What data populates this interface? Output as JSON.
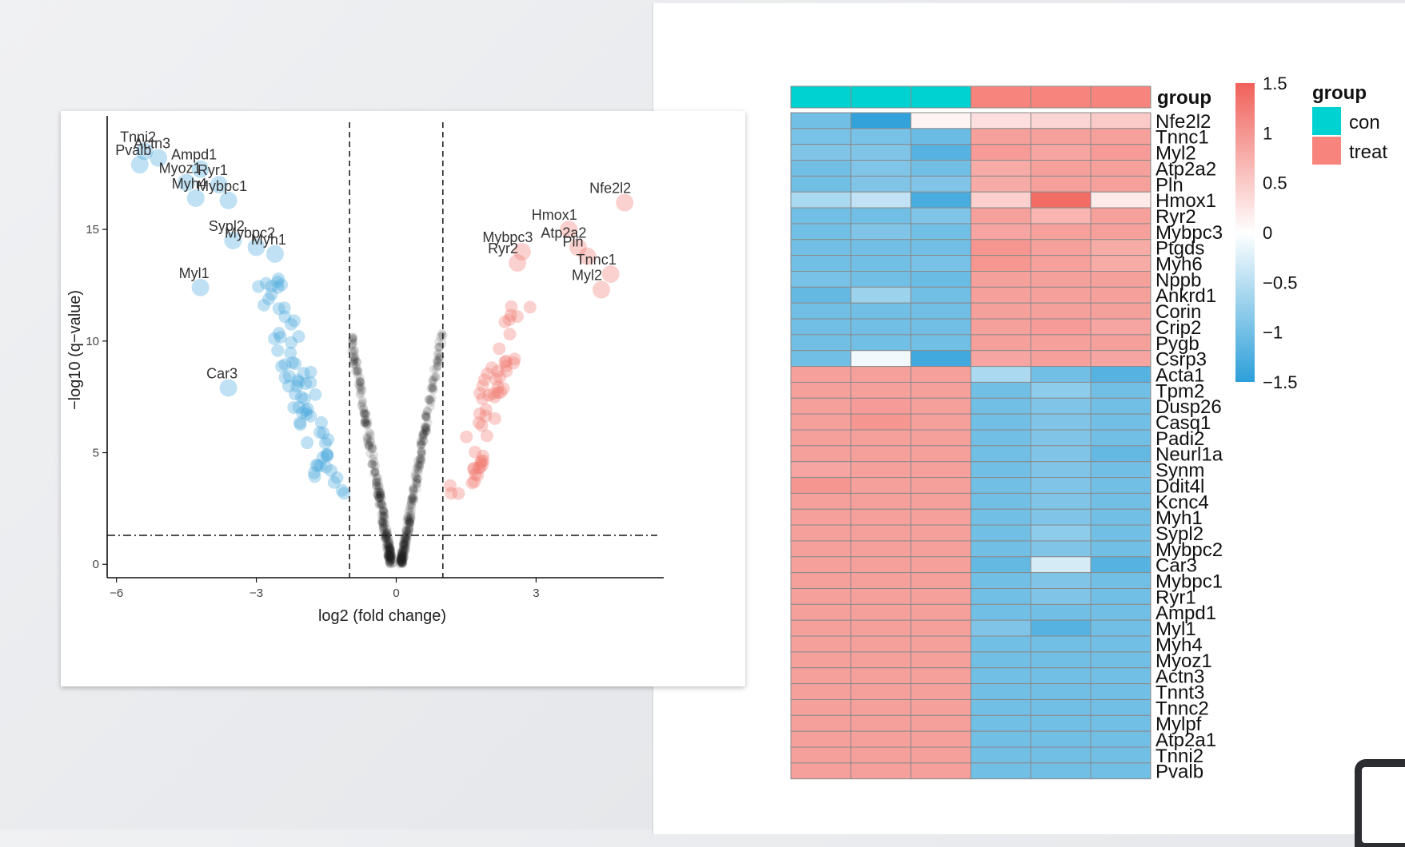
{
  "chart_data": [
    {
      "type": "scatter",
      "subtype": "volcano",
      "xlabel": "log2 (fold change)",
      "ylabel": "−log10 (q−value)",
      "xlim": [
        -6.2,
        5.6
      ],
      "ylim": [
        -0.6,
        19.8
      ],
      "x_ticks": [
        -6,
        -3,
        0,
        3
      ],
      "x_tick_labels": [
        "−6",
        "−3",
        "0",
        "3"
      ],
      "y_ticks": [
        0,
        5,
        10,
        15
      ],
      "y_tick_labels": [
        "0",
        "5",
        "10",
        "15"
      ],
      "thresholds": {
        "vlines": [
          -1,
          1
        ],
        "hline": 1.3
      },
      "colors": {
        "down": "#4aa8dc",
        "up": "#f07b72",
        "ns": "#222222"
      },
      "grid": false,
      "labeled_points": [
        {
          "label": "Tnni2",
          "x": -5.4,
          "y": 18.5,
          "group": "down"
        },
        {
          "label": "Actn3",
          "x": -5.1,
          "y": 18.2,
          "group": "down"
        },
        {
          "label": "Pvalb",
          "x": -5.5,
          "y": 17.9,
          "group": "down"
        },
        {
          "label": "Ampd1",
          "x": -4.2,
          "y": 17.7,
          "group": "down"
        },
        {
          "label": "Ryr1",
          "x": -3.8,
          "y": 17.0,
          "group": "down"
        },
        {
          "label": "Myoz1",
          "x": -4.5,
          "y": 17.1,
          "group": "down"
        },
        {
          "label": "Mybpc1",
          "x": -3.6,
          "y": 16.3,
          "group": "down"
        },
        {
          "label": "Myh4",
          "x": -4.3,
          "y": 16.4,
          "group": "down"
        },
        {
          "label": "Sypl2",
          "x": -3.5,
          "y": 14.5,
          "group": "down"
        },
        {
          "label": "Mybpc2",
          "x": -3.0,
          "y": 14.2,
          "group": "down"
        },
        {
          "label": "Myh1",
          "x": -2.6,
          "y": 13.9,
          "group": "down"
        },
        {
          "label": "Myl1",
          "x": -4.2,
          "y": 12.4,
          "group": "down"
        },
        {
          "label": "Car3",
          "x": -3.6,
          "y": 7.9,
          "group": "down"
        },
        {
          "label": "Nfe2l2",
          "x": 4.9,
          "y": 16.2,
          "group": "up"
        },
        {
          "label": "Hmox1",
          "x": 3.7,
          "y": 15.0,
          "group": "up"
        },
        {
          "label": "Mybpc3",
          "x": 2.7,
          "y": 14.0,
          "group": "up"
        },
        {
          "label": "Atp2a2",
          "x": 3.9,
          "y": 14.2,
          "group": "up"
        },
        {
          "label": "Ryr2",
          "x": 2.6,
          "y": 13.5,
          "group": "up"
        },
        {
          "label": "Pln",
          "x": 4.1,
          "y": 13.8,
          "group": "up"
        },
        {
          "label": "Tnnc1",
          "x": 4.6,
          "y": 13.0,
          "group": "up"
        },
        {
          "label": "Myl2",
          "x": 4.4,
          "y": 12.3,
          "group": "up"
        }
      ]
    },
    {
      "type": "heatmap",
      "legend_title": "group",
      "groups": [
        {
          "name": "con",
          "color": "#00d2d2"
        },
        {
          "name": "treat",
          "color": "#f8857d"
        }
      ],
      "columns": [
        "con",
        "con",
        "con",
        "treat",
        "treat",
        "treat"
      ],
      "colorbar": {
        "ticks": [
          1.5,
          1,
          0.5,
          0,
          -0.5,
          -1,
          -1.5
        ],
        "tick_labels": [
          "1.5",
          "1",
          "0.5",
          "0",
          "−0.5",
          "−1",
          "−1.5"
        ],
        "colors": [
          "#f0615a",
          "#ffffff",
          "#2c9fd9"
        ]
      },
      "rows": [
        {
          "gene": "Nfe2l2",
          "values": [
            -1.0,
            -1.45,
            0.1,
            0.3,
            0.4,
            0.5
          ]
        },
        {
          "gene": "Tnnc1",
          "values": [
            -0.95,
            -0.95,
            -1.05,
            0.9,
            0.9,
            0.9
          ]
        },
        {
          "gene": "Myl2",
          "values": [
            -0.9,
            -0.9,
            -1.2,
            0.95,
            0.85,
            0.95
          ]
        },
        {
          "gene": "Atp2a2",
          "values": [
            -1.0,
            -0.9,
            -1.0,
            0.8,
            0.9,
            0.9
          ]
        },
        {
          "gene": "Pln",
          "values": [
            -1.0,
            -0.9,
            -0.9,
            0.8,
            0.9,
            0.9
          ]
        },
        {
          "gene": "Hmox1",
          "values": [
            -0.6,
            -0.45,
            -1.3,
            0.45,
            1.4,
            0.2
          ]
        },
        {
          "gene": "Ryr2",
          "values": [
            -1.0,
            -1.0,
            -0.9,
            0.9,
            0.7,
            0.9
          ]
        },
        {
          "gene": "Mybpc3",
          "values": [
            -1.0,
            -0.9,
            -1.0,
            0.85,
            0.9,
            0.9
          ]
        },
        {
          "gene": "Ptgds",
          "values": [
            -1.0,
            -1.0,
            -1.0,
            1.0,
            0.9,
            0.8
          ]
        },
        {
          "gene": "Myh6",
          "values": [
            -1.0,
            -1.0,
            -0.95,
            1.0,
            0.9,
            0.8
          ]
        },
        {
          "gene": "Nppb",
          "values": [
            -0.95,
            -1.0,
            -1.05,
            0.9,
            0.9,
            0.9
          ]
        },
        {
          "gene": "Ankrd1",
          "values": [
            -1.1,
            -0.7,
            -1.0,
            0.9,
            0.9,
            0.9
          ]
        },
        {
          "gene": "Corin",
          "values": [
            -1.0,
            -1.0,
            -1.0,
            0.9,
            0.9,
            0.9
          ]
        },
        {
          "gene": "Crip2",
          "values": [
            -1.0,
            -1.0,
            -1.0,
            0.9,
            0.95,
            0.85
          ]
        },
        {
          "gene": "Pygb",
          "values": [
            -1.0,
            -1.0,
            -1.0,
            0.9,
            0.9,
            0.9
          ]
        },
        {
          "gene": "Csrp3",
          "values": [
            -1.0,
            -0.1,
            -1.35,
            0.85,
            0.9,
            0.85
          ]
        },
        {
          "gene": "Acta1",
          "values": [
            0.9,
            0.9,
            0.9,
            -0.6,
            -1.0,
            -1.2
          ]
        },
        {
          "gene": "Tpm2",
          "values": [
            0.9,
            0.9,
            0.9,
            -1.0,
            -0.8,
            -1.0
          ]
        },
        {
          "gene": "Dusp26",
          "values": [
            0.9,
            0.95,
            0.9,
            -1.0,
            -0.9,
            -1.0
          ]
        },
        {
          "gene": "Casq1",
          "values": [
            0.9,
            1.0,
            0.9,
            -1.0,
            -0.9,
            -1.0
          ]
        },
        {
          "gene": "Padi2",
          "values": [
            0.9,
            0.9,
            0.9,
            -1.0,
            -0.9,
            -1.0
          ]
        },
        {
          "gene": "Neurl1a",
          "values": [
            0.9,
            0.9,
            0.9,
            -1.0,
            -0.9,
            -1.1
          ]
        },
        {
          "gene": "Synm",
          "values": [
            0.85,
            0.9,
            0.9,
            -1.0,
            -0.9,
            -1.0
          ]
        },
        {
          "gene": "Ddit4l",
          "values": [
            1.0,
            0.9,
            0.9,
            -1.0,
            -0.9,
            -1.0
          ]
        },
        {
          "gene": "Kcnc4",
          "values": [
            0.9,
            0.9,
            0.9,
            -1.0,
            -0.9,
            -1.0
          ]
        },
        {
          "gene": "Myh1",
          "values": [
            0.9,
            0.9,
            0.9,
            -1.0,
            -0.9,
            -1.0
          ]
        },
        {
          "gene": "Sypl2",
          "values": [
            0.9,
            0.9,
            0.9,
            -1.0,
            -0.8,
            -1.0
          ]
        },
        {
          "gene": "Mybpc2",
          "values": [
            0.9,
            0.9,
            0.9,
            -1.0,
            -0.9,
            -1.0
          ]
        },
        {
          "gene": "Car3",
          "values": [
            0.9,
            0.9,
            0.9,
            -1.1,
            -0.3,
            -1.2
          ]
        },
        {
          "gene": "Mybpc1",
          "values": [
            0.9,
            0.9,
            0.9,
            -1.0,
            -0.9,
            -1.0
          ]
        },
        {
          "gene": "Ryr1",
          "values": [
            0.9,
            0.9,
            0.9,
            -1.0,
            -0.9,
            -1.0
          ]
        },
        {
          "gene": "Ampd1",
          "values": [
            0.9,
            0.9,
            0.9,
            -1.0,
            -1.0,
            -1.0
          ]
        },
        {
          "gene": "Myl1",
          "values": [
            0.9,
            0.9,
            0.9,
            -0.9,
            -1.2,
            -1.0
          ]
        },
        {
          "gene": "Myh4",
          "values": [
            0.9,
            0.9,
            0.9,
            -1.0,
            -1.0,
            -1.0
          ]
        },
        {
          "gene": "Myoz1",
          "values": [
            0.9,
            0.9,
            0.9,
            -1.0,
            -1.0,
            -1.0
          ]
        },
        {
          "gene": "Actn3",
          "values": [
            0.9,
            0.9,
            0.9,
            -1.0,
            -1.0,
            -1.0
          ]
        },
        {
          "gene": "Tnnt3",
          "values": [
            0.9,
            0.9,
            0.9,
            -1.0,
            -1.0,
            -1.0
          ]
        },
        {
          "gene": "Tnnc2",
          "values": [
            0.9,
            0.9,
            0.9,
            -1.0,
            -1.0,
            -1.0
          ]
        },
        {
          "gene": "Mylpf",
          "values": [
            0.9,
            0.9,
            0.9,
            -1.0,
            -1.0,
            -1.0
          ]
        },
        {
          "gene": "Atp2a1",
          "values": [
            0.9,
            0.9,
            0.9,
            -1.0,
            -1.0,
            -1.0
          ]
        },
        {
          "gene": "Tnni2",
          "values": [
            0.9,
            0.9,
            0.9,
            -1.0,
            -1.0,
            -1.0
          ]
        },
        {
          "gene": "Pvalb",
          "values": [
            0.9,
            0.9,
            0.9,
            -1.0,
            -1.0,
            -1.0
          ]
        }
      ]
    }
  ]
}
